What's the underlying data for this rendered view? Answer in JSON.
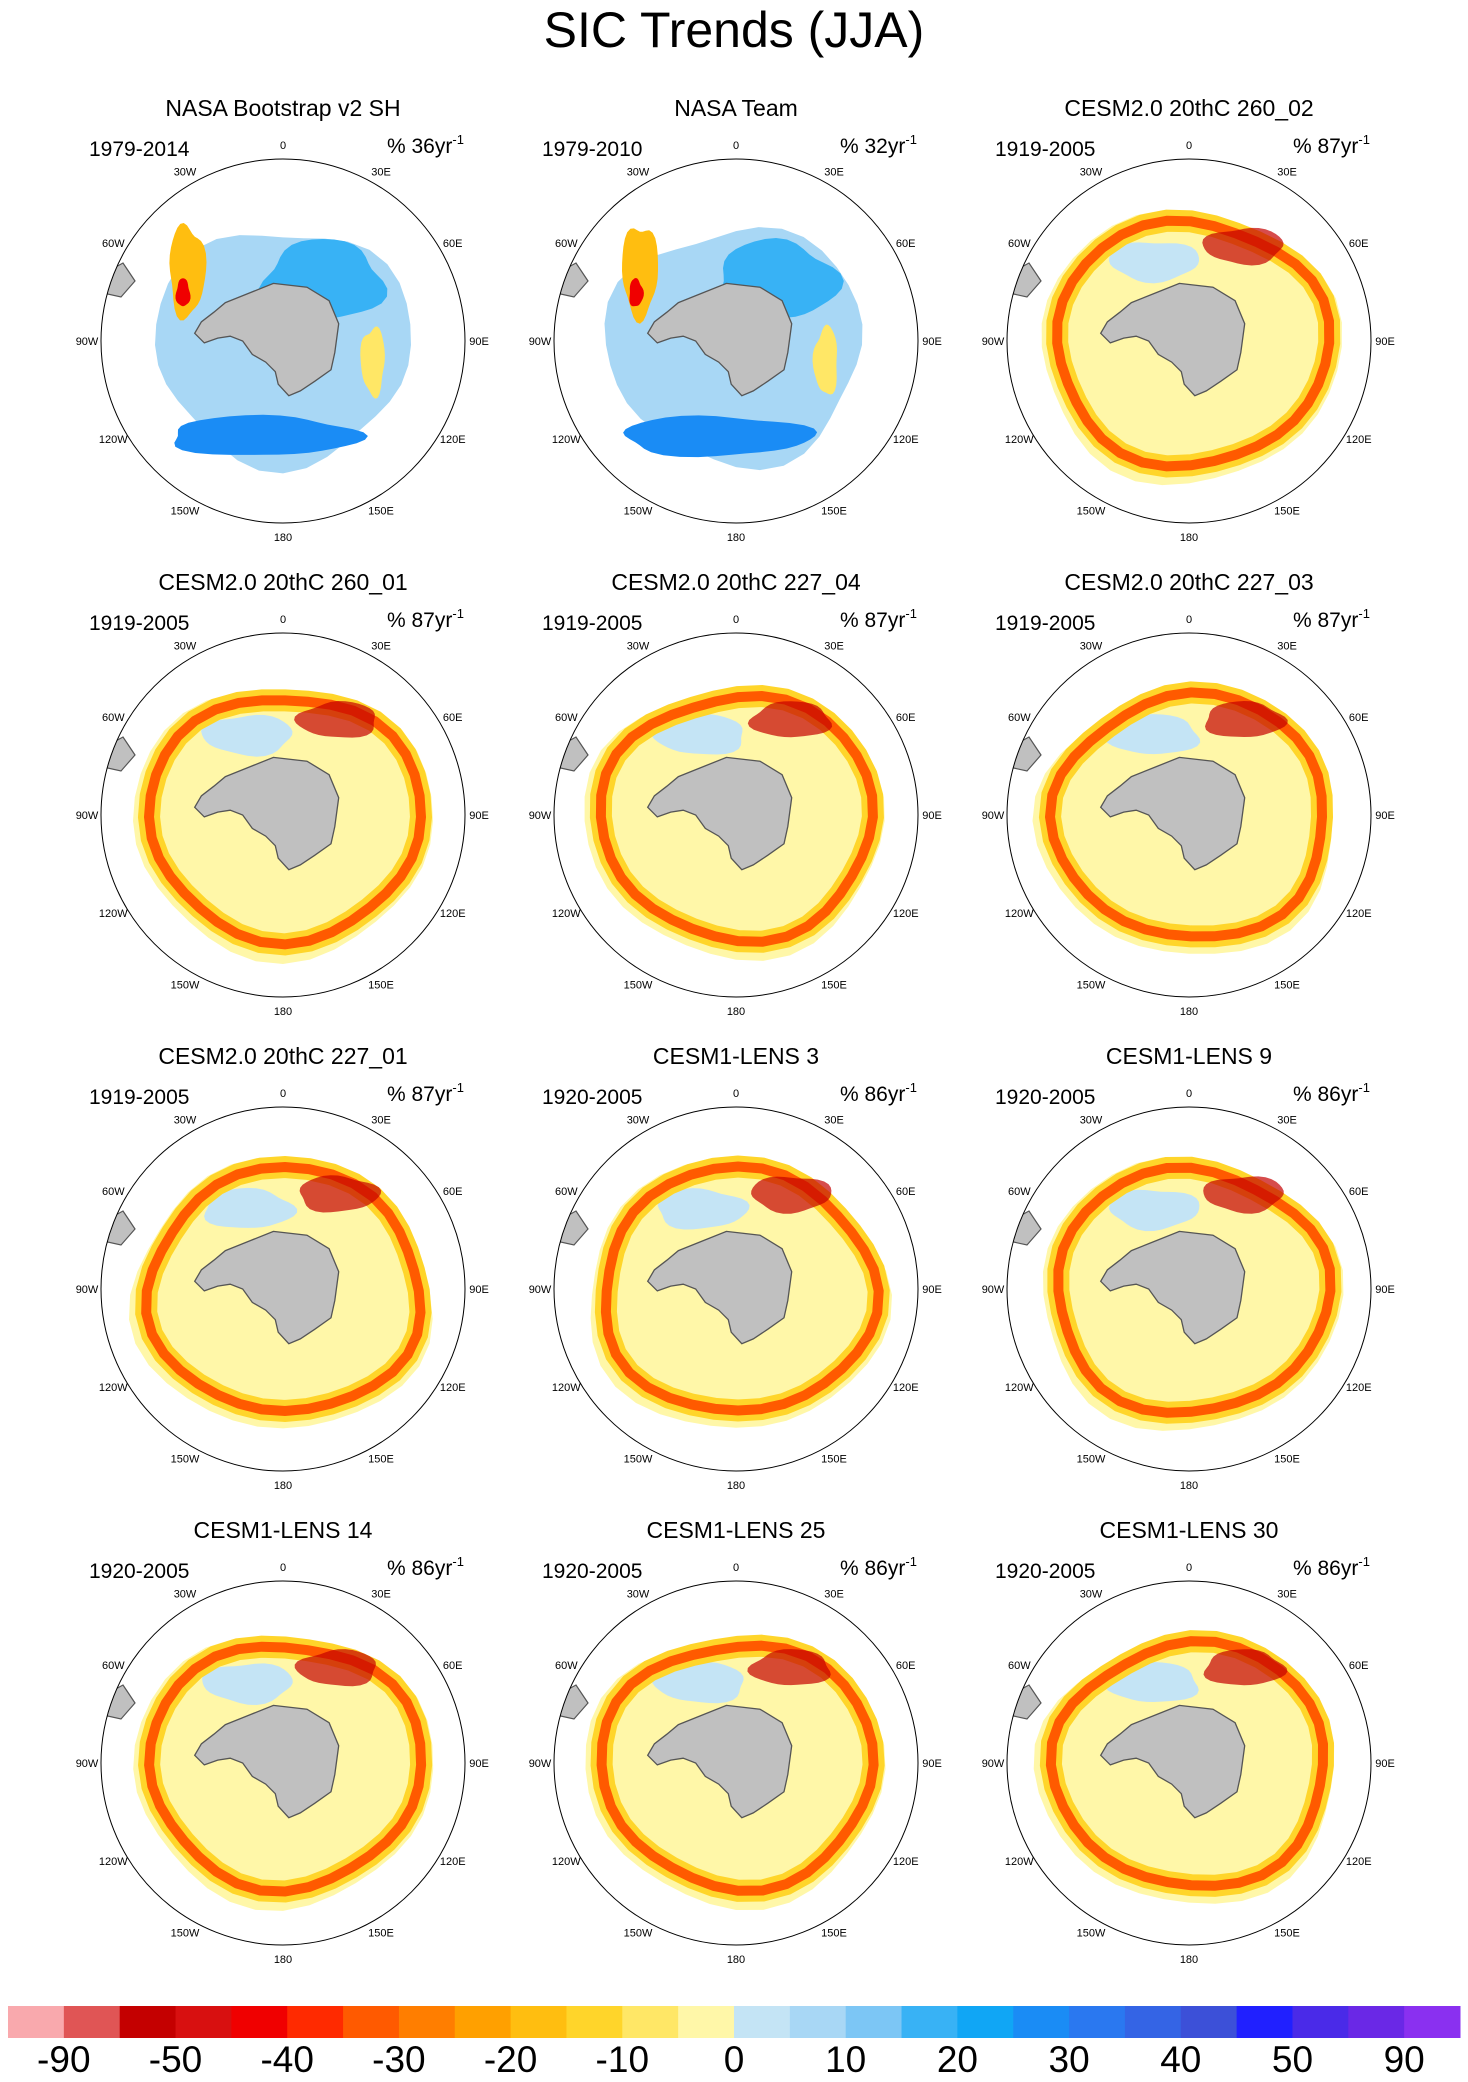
{
  "title": "SIC Trends (JJA)",
  "chart_data": {
    "type": "polar-stereographic contour map panels (Southern Hemisphere)",
    "variable": "Sea ice concentration trend",
    "season": "JJA",
    "lon_labels": [
      "0",
      "30E",
      "60E",
      "90E",
      "120E",
      "150E",
      "180",
      "150W",
      "120W",
      "90W",
      "60W",
      "30W"
    ],
    "panels": [
      {
        "title": "NASA Bootstrap v2 SH",
        "period": "1979-2014",
        "units_prefix": "% ",
        "units_value": "36yr",
        "units_sup": "-1",
        "pattern": "obs"
      },
      {
        "title": "NASA Team",
        "period": "1979-2010",
        "units_prefix": "% ",
        "units_value": "32yr",
        "units_sup": "-1",
        "pattern": "obs"
      },
      {
        "title": "CESM2.0 20thC 260_02",
        "period": "1919-2005",
        "units_prefix": "% ",
        "units_value": "87yr",
        "units_sup": "-1",
        "pattern": "model"
      },
      {
        "title": "CESM2.0 20thC 260_01",
        "period": "1919-2005",
        "units_prefix": "% ",
        "units_value": "87yr",
        "units_sup": "-1",
        "pattern": "model"
      },
      {
        "title": "CESM2.0 20thC 227_04",
        "period": "1919-2005",
        "units_prefix": "% ",
        "units_value": "87yr",
        "units_sup": "-1",
        "pattern": "model"
      },
      {
        "title": "CESM2.0 20thC 227_03",
        "period": "1919-2005",
        "units_prefix": "% ",
        "units_value": "87yr",
        "units_sup": "-1",
        "pattern": "model"
      },
      {
        "title": "CESM2.0 20thC 227_01",
        "period": "1919-2005",
        "units_prefix": "% ",
        "units_value": "87yr",
        "units_sup": "-1",
        "pattern": "model"
      },
      {
        "title": "CESM1-LENS 3",
        "period": "1920-2005",
        "units_prefix": "% ",
        "units_value": "86yr",
        "units_sup": "-1",
        "pattern": "model"
      },
      {
        "title": "CESM1-LENS 9",
        "period": "1920-2005",
        "units_prefix": "% ",
        "units_value": "86yr",
        "units_sup": "-1",
        "pattern": "model"
      },
      {
        "title": "CESM1-LENS 14",
        "period": "1920-2005",
        "units_prefix": "% ",
        "units_value": "86yr",
        "units_sup": "-1",
        "pattern": "model"
      },
      {
        "title": "CESM1-LENS 25",
        "period": "1920-2005",
        "units_prefix": "% ",
        "units_value": "86yr",
        "units_sup": "-1",
        "pattern": "model"
      },
      {
        "title": "CESM1-LENS 30",
        "period": "1920-2005",
        "units_prefix": "% ",
        "units_value": "86yr",
        "units_sup": "-1",
        "pattern": "model"
      }
    ],
    "colorbar": {
      "colors": [
        "#f9a9ad",
        "#e05555",
        "#c40000",
        "#d81010",
        "#f00000",
        "#ff2a00",
        "#ff5a00",
        "#ff7e00",
        "#ffa000",
        "#ffbe10",
        "#ffd52a",
        "#ffe766",
        "#fff7a8",
        "#c4e4f5",
        "#a8d7f5",
        "#7cc6f5",
        "#38b2f5",
        "#10a6f5",
        "#1a8cf5",
        "#2a78f0",
        "#3464e5",
        "#3c50d8",
        "#2020ff",
        "#4a2ae8",
        "#6a28e6",
        "#8a30f0"
      ],
      "tick_labels": [
        "-90",
        "-50",
        "-40",
        "-30",
        "-20",
        "-10",
        "0",
        "10",
        "20",
        "30",
        "40",
        "50",
        "90"
      ]
    },
    "land_color": "#c0c0c0",
    "coast_color": "#555555"
  }
}
